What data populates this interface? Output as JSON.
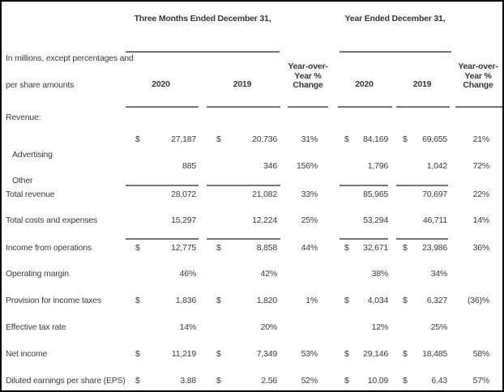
{
  "header": {
    "three_months_title": "Three Months Ended December 31,",
    "year_title": "Year Ended December 31,",
    "note_line1": "In millions, except percentages and",
    "note_line2": "per share amounts",
    "col_2020": "2020",
    "col_2019": "2019",
    "yoy_label": "Year-over-Year % Change"
  },
  "dollar_symbol": "$",
  "rows": [
    {
      "label": "Revenue:",
      "indent": false,
      "dollars": [
        false,
        false,
        false,
        false,
        false,
        false
      ],
      "values": [
        "",
        "",
        "",
        "",
        "",
        ""
      ]
    },
    {
      "label": "Advertising",
      "indent": true,
      "dollars": [
        true,
        true,
        false,
        true,
        true,
        false
      ],
      "values": [
        "27,187",
        "20,736",
        "31%",
        "84,169",
        "69,655",
        "21%"
      ]
    },
    {
      "label": "Other",
      "indent": true,
      "dollars": [
        false,
        false,
        false,
        false,
        false,
        false
      ],
      "values": [
        "885",
        "346",
        "156%",
        "1,796",
        "1,042",
        "72%"
      ]
    },
    {
      "label": "Total revenue",
      "indent": false,
      "dollars": [
        false,
        false,
        false,
        false,
        false,
        false
      ],
      "values": [
        "28,072",
        "21,082",
        "33%",
        "85,965",
        "70,697",
        "22%"
      ]
    },
    {
      "label": "Total costs and expenses",
      "indent": false,
      "dollars": [
        false,
        false,
        false,
        false,
        false,
        false
      ],
      "values": [
        "15,297",
        "12,224",
        "25%",
        "53,294",
        "46,711",
        "14%"
      ]
    },
    {
      "label": "Income from operations",
      "indent": false,
      "dollars": [
        true,
        true,
        false,
        true,
        true,
        false
      ],
      "values": [
        "12,775",
        "8,858",
        "44%",
        "32,671",
        "23,986",
        "36%"
      ]
    },
    {
      "label": "Operating margin",
      "indent": false,
      "dollars": [
        false,
        false,
        false,
        false,
        false,
        false
      ],
      "values": [
        "46%",
        "42%",
        "",
        "38%",
        "34%",
        ""
      ]
    },
    {
      "label": "Provision for income taxes",
      "indent": false,
      "dollars": [
        true,
        true,
        false,
        true,
        true,
        false
      ],
      "values": [
        "1,836",
        "1,820",
        "1%",
        "4,034",
        "6,327",
        "(36)%"
      ]
    },
    {
      "label": "Effective tax rate",
      "indent": false,
      "dollars": [
        false,
        false,
        false,
        false,
        false,
        false
      ],
      "values": [
        "14%",
        "20%",
        "",
        "12%",
        "25%",
        ""
      ]
    },
    {
      "label": "Net income",
      "indent": false,
      "dollars": [
        true,
        true,
        false,
        true,
        true,
        false
      ],
      "values": [
        "11,219",
        "7,349",
        "53%",
        "29,146",
        "18,485",
        "58%"
      ]
    },
    {
      "label": "Diluted earnings per share (EPS)",
      "indent": false,
      "dollars": [
        true,
        true,
        false,
        true,
        true,
        false
      ],
      "values": [
        "3.88",
        "2.56",
        "52%",
        "10.09",
        "6.43",
        "57%"
      ]
    }
  ]
}
